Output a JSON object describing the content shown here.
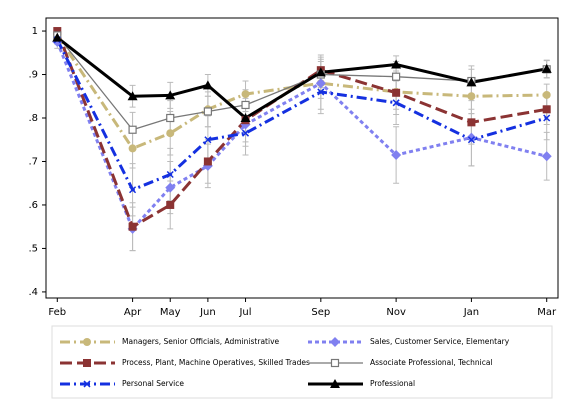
{
  "chart_data": {
    "type": "line",
    "x": [
      0,
      2,
      3,
      4,
      5,
      7,
      9,
      11,
      13
    ],
    "xlim": [
      -0.3,
      13.3
    ],
    "xticks": [
      {
        "value": 0,
        "label": "Feb"
      },
      {
        "value": 2,
        "label": "Apr"
      },
      {
        "value": 3,
        "label": "May"
      },
      {
        "value": 4,
        "label": "Jun"
      },
      {
        "value": 5,
        "label": "Jul"
      },
      {
        "value": 7,
        "label": "Sep"
      },
      {
        "value": 9,
        "label": "Nov"
      },
      {
        "value": 11,
        "label": "Jan"
      },
      {
        "value": 13,
        "label": "Mar"
      }
    ],
    "ylim": [
      0.386,
      1.03
    ],
    "yticks": [
      {
        "value": 0.4,
        "label": ".4"
      },
      {
        "value": 0.5,
        "label": ".5"
      },
      {
        "value": 0.6,
        "label": ".6"
      },
      {
        "value": 0.7,
        "label": ".7"
      },
      {
        "value": 0.8,
        "label": ".8"
      },
      {
        "value": 0.9,
        "label": ".9"
      },
      1
    ],
    "series": [
      {
        "name": "Managers, Senior Officials, Administrative",
        "color": "#c8b87a",
        "dash": "dashdot",
        "marker": "circle",
        "width": 3,
        "values": [
          0.99,
          0.73,
          0.765,
          0.82,
          0.855,
          0.88,
          0.86,
          0.85,
          0.853
        ],
        "errors": [
          0.01,
          0.045,
          0.05,
          0.04,
          0.03,
          0.035,
          0.04,
          0.04,
          0.025
        ]
      },
      {
        "name": "Sales, Customer Service, Elementary",
        "color": "#8080f0",
        "dash": "short",
        "marker": "diamond",
        "width": 3,
        "values": [
          0.975,
          0.545,
          0.64,
          0.69,
          0.785,
          0.88,
          0.715,
          0.755,
          0.712
        ],
        "errors": [
          0.015,
          0.05,
          0.06,
          0.05,
          0.05,
          0.06,
          0.065,
          0.065,
          0.055
        ]
      },
      {
        "name": "Process, Plant, Machine Operatives, Skilled Trades",
        "color": "#8b3333",
        "dash": "long",
        "marker": "square",
        "width": 3,
        "values": [
          1.0,
          0.55,
          0.6,
          0.7,
          0.795,
          0.91,
          0.858,
          0.79,
          0.82
        ],
        "errors": [
          0.005,
          0.055,
          0.055,
          0.05,
          0.05,
          0.035,
          0.05,
          0.05,
          0.035
        ]
      },
      {
        "name": "Associate Professional, Technical",
        "color": "#777777",
        "dash": "solid",
        "marker": "hollow-square",
        "width": 1.3,
        "values": [
          0.99,
          0.773,
          0.8,
          0.815,
          0.83,
          0.9,
          0.895,
          0.885,
          0.912
        ],
        "errors": [
          0.01,
          0.04,
          0.04,
          0.035,
          0.035,
          0.03,
          0.035,
          0.035,
          0.02
        ]
      },
      {
        "name": "Personal Service",
        "color": "#1430e0",
        "dash": "dashdot",
        "marker": "x",
        "width": 3,
        "values": [
          0.98,
          0.635,
          0.67,
          0.75,
          0.765,
          0.86,
          0.835,
          0.75,
          0.8
        ],
        "errors": [
          0.01,
          0.06,
          0.06,
          0.055,
          0.05,
          0.05,
          0.05,
          0.06,
          0.05
        ]
      },
      {
        "name": "Professional",
        "color": "#000000",
        "dash": "solid",
        "marker": "triangle",
        "width": 3,
        "values": [
          0.985,
          0.85,
          0.852,
          0.875,
          0.8,
          0.905,
          0.923,
          0.882,
          0.913
        ],
        "errors": [
          0.01,
          0.025,
          0.03,
          0.025,
          0.03,
          0.03,
          0.02,
          0.03,
          0.02
        ]
      }
    ]
  }
}
